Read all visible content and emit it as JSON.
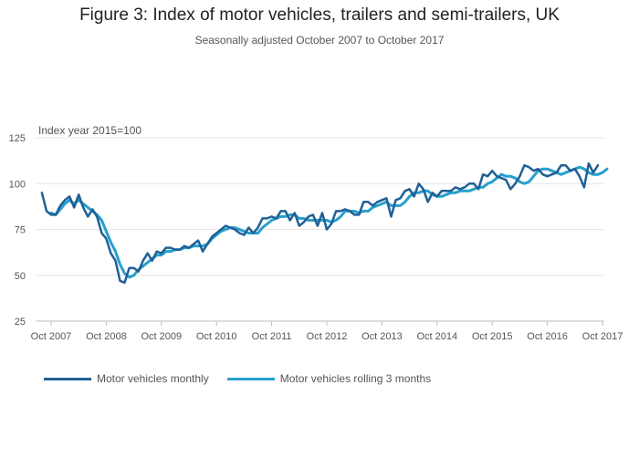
{
  "chart_data": {
    "type": "line",
    "title": "Figure 3: Index of motor vehicles, trailers and semi-trailers, UK",
    "subtitle": "Seasonally adjusted October 2007 to October 2017",
    "ylabel": "Index year 2015=100",
    "xlabel": "",
    "ylim": [
      25,
      125
    ],
    "yticks": [
      25,
      50,
      75,
      100,
      125
    ],
    "x_start": "Oct 2007",
    "x_end": "Oct 2017",
    "x_months_total": 120,
    "x_first_month_offset": -2,
    "x_tick_labels": [
      "Oct 2007",
      "Oct 2008",
      "Oct 2009",
      "Oct 2010",
      "Oct 2011",
      "Oct 2012",
      "Oct 2013",
      "Oct 2014",
      "Oct 2015",
      "Oct 2016",
      "Oct 2017"
    ],
    "grid": true,
    "legend_position": "bottom-left",
    "series": [
      {
        "name": "Motor vehicles monthly",
        "color": "#206095",
        "values": [
          95,
          85,
          83,
          83,
          88,
          91,
          93,
          87,
          94,
          87,
          82,
          86,
          82,
          73,
          70,
          62,
          58,
          47,
          46,
          54,
          54,
          52,
          58,
          62,
          58,
          63,
          62,
          65,
          65,
          64,
          64,
          66,
          65,
          67,
          69,
          63,
          67,
          71,
          73,
          75,
          77,
          76,
          75,
          73,
          72,
          76,
          73,
          76,
          81,
          81,
          82,
          81,
          85,
          85,
          80,
          84,
          77,
          79,
          82,
          83,
          77,
          84,
          75,
          78,
          85,
          85,
          86,
          85,
          83,
          83,
          90,
          90,
          88,
          90,
          91,
          92,
          82,
          91,
          92,
          96,
          97,
          93,
          100,
          97,
          90,
          95,
          93,
          96,
          96,
          96,
          98,
          97,
          98,
          100,
          100,
          97,
          105,
          104,
          107,
          104,
          103,
          102,
          97,
          100,
          104,
          110,
          109,
          107,
          108,
          105,
          104,
          105,
          106,
          110,
          110,
          107,
          108,
          104,
          98,
          111,
          106,
          110
        ],
        "first_offset": -2
      },
      {
        "name": "Motor vehicles rolling 3 months",
        "color": "#27a0cc",
        "values": [
          84,
          83,
          86,
          89,
          91,
          89,
          91,
          89,
          87,
          85,
          83,
          80,
          74,
          68,
          63,
          56,
          51,
          49,
          50,
          53,
          55,
          57,
          59,
          61,
          61,
          63,
          63,
          64,
          64,
          65,
          65,
          66,
          66,
          66,
          67,
          70,
          72,
          74,
          75,
          76,
          76,
          75,
          74,
          73,
          73,
          73,
          76,
          78,
          80,
          81,
          82,
          82,
          83,
          83,
          81,
          81,
          80,
          80,
          80,
          80,
          80,
          79,
          80,
          82,
          85,
          85,
          85,
          84,
          85,
          85,
          87,
          88,
          89,
          90,
          88,
          88,
          88,
          90,
          93,
          95,
          95,
          96,
          96,
          94,
          93,
          93,
          94,
          95,
          95,
          96,
          96,
          96,
          97,
          98,
          98,
          100,
          101,
          103,
          105,
          104,
          104,
          103,
          101,
          100,
          101,
          104,
          107,
          108,
          108,
          107,
          106,
          105,
          106,
          107,
          108,
          109,
          108,
          106,
          105,
          105,
          106,
          108
        ],
        "first_offset": 0
      }
    ]
  },
  "legend": {
    "monthly": "Motor vehicles monthly",
    "rolling": "Motor vehicles rolling 3 months"
  }
}
